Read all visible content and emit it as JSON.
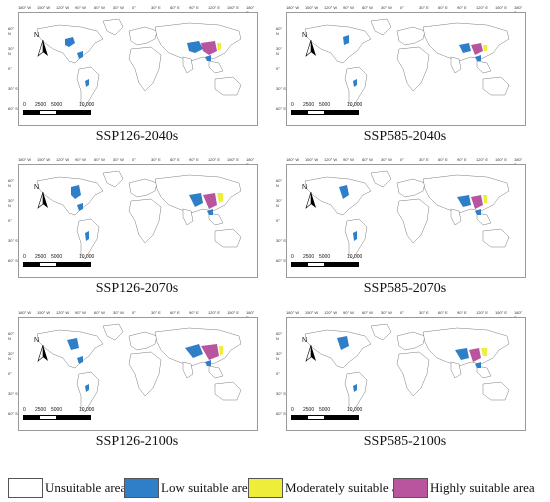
{
  "panels": [
    {
      "caption": "SSP126-2040s"
    },
    {
      "caption": "SSP585-2040s"
    },
    {
      "caption": "SSP126-2070s"
    },
    {
      "caption": "SSP585-2070s"
    },
    {
      "caption": "SSP126-2100s"
    },
    {
      "caption": "SSP585-2100s"
    }
  ],
  "map": {
    "north_label": "N",
    "scale_labels": [
      "0",
      "2500",
      "5000",
      "10,000"
    ],
    "lon_labels": [
      "180° W",
      "150° W",
      "120° W",
      "90° W",
      "60° W",
      "30° W",
      "0°",
      "30° E",
      "60° E",
      "90° E",
      "120° E",
      "150° E",
      "180° E"
    ],
    "lat_labels": [
      "60° N",
      "30° N",
      "0°",
      "30° S",
      "60° S"
    ]
  },
  "legend": [
    {
      "label": "Unsuitable area",
      "color": "#ffffff"
    },
    {
      "label": "Low suitable area",
      "color": "#2e7fc8"
    },
    {
      "label": "Moderately suitable area",
      "color": "#eeee3a"
    },
    {
      "label": "Highly suitable area",
      "color": "#b8559e"
    }
  ]
}
